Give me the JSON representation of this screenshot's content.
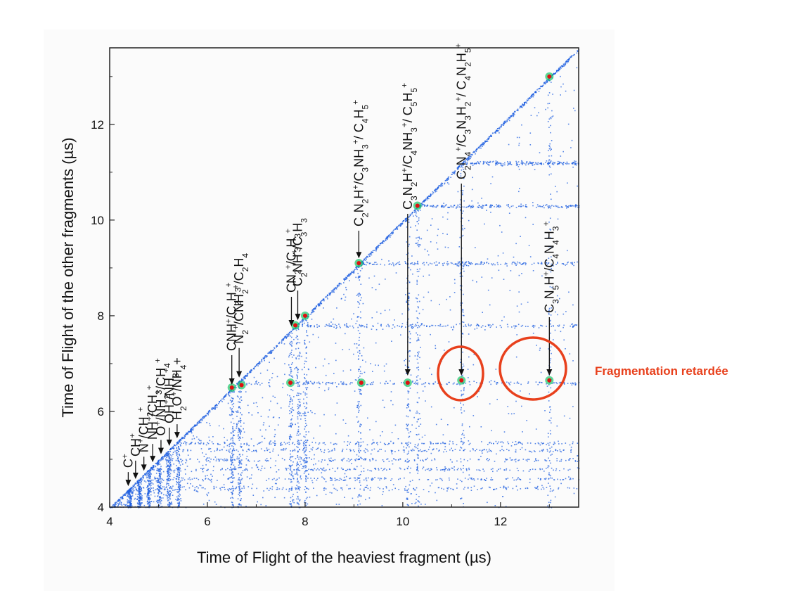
{
  "chart_data": {
    "type": "scatter",
    "title": "",
    "xlabel": "Time of Flight of the heaviest fragment (µs)",
    "ylabel": "Time of Flight of the other fragments (µs)",
    "xlim": [
      4,
      13.6
    ],
    "ylim": [
      4,
      13.6
    ],
    "x_ticks": [
      4,
      6,
      8,
      10,
      12
    ],
    "y_ticks": [
      4,
      6,
      8,
      10,
      12
    ],
    "colors": {
      "points": "#1f5fe0",
      "hot": "#e01010",
      "highlight": "#e8401c"
    },
    "hot_spots": [
      {
        "x": 6.5,
        "y": 6.5
      },
      {
        "x": 6.7,
        "y": 6.55
      },
      {
        "x": 7.7,
        "y": 6.6
      },
      {
        "x": 7.8,
        "y": 7.8
      },
      {
        "x": 9.15,
        "y": 6.6
      },
      {
        "x": 9.1,
        "y": 9.1
      },
      {
        "x": 10.1,
        "y": 6.6
      },
      {
        "x": 10.3,
        "y": 10.3
      },
      {
        "x": 11.2,
        "y": 6.65
      },
      {
        "x": 13.0,
        "y": 6.65
      },
      {
        "x": 13.0,
        "y": 13.0
      },
      {
        "x": 8.0,
        "y": 8.0
      }
    ],
    "annotations": [
      {
        "parts": [
          [
            "C",
            ""
          ],
          [
            "+",
            "sup"
          ]
        ],
        "x": 4.38
      },
      {
        "parts": [
          [
            "CH",
            ""
          ],
          [
            "+",
            "sup"
          ]
        ],
        "x": 4.53
      },
      {
        "parts": [
          [
            "N",
            ""
          ],
          [
            "+",
            "sup"
          ],
          [
            "/CH",
            ""
          ],
          [
            "2",
            "sub"
          ],
          [
            "+",
            "sup"
          ]
        ],
        "x": 4.7
      },
      {
        "parts": [
          [
            "NH",
            ""
          ],
          [
            "+",
            "sup"
          ],
          [
            "/CH",
            ""
          ],
          [
            "3",
            "sub"
          ],
          [
            "+",
            "sup"
          ]
        ],
        "x": 4.88
      },
      {
        "parts": [
          [
            "O",
            ""
          ],
          [
            "+",
            "sup"
          ],
          [
            "/NH",
            ""
          ],
          [
            "2",
            "sub"
          ],
          [
            "+",
            "sup"
          ],
          [
            "/CH",
            ""
          ],
          [
            "4",
            "sub"
          ],
          [
            "+",
            "sup"
          ]
        ],
        "x": 5.05
      },
      {
        "parts": [
          [
            "OH",
            ""
          ],
          [
            "+",
            "sup"
          ],
          [
            "/NH",
            ""
          ],
          [
            "3",
            "sub"
          ],
          [
            "+",
            "sup"
          ]
        ],
        "x": 5.22
      },
      {
        "parts": [
          [
            "H",
            ""
          ],
          [
            "2",
            "sub"
          ],
          [
            "O",
            ""
          ],
          [
            "+",
            "sup"
          ],
          [
            "/NH",
            ""
          ],
          [
            "4",
            "sub"
          ],
          [
            "+",
            ""
          ]
        ],
        "x": 5.38
      },
      {
        "parts": [
          [
            "CNH",
            ""
          ],
          [
            "+",
            "sup"
          ],
          [
            "/C",
            ""
          ],
          [
            "2",
            "sub"
          ],
          [
            "H",
            ""
          ],
          [
            "3",
            "sub"
          ],
          [
            "+",
            "sup"
          ]
        ],
        "x": 6.5
      },
      {
        "parts": [
          [
            "N",
            ""
          ],
          [
            "2",
            "sub"
          ],
          [
            "+",
            "sup"
          ],
          [
            "/CNH",
            ""
          ],
          [
            "2",
            "sub"
          ],
          [
            "+",
            "sup"
          ],
          [
            "/C",
            ""
          ],
          [
            "2",
            "sub"
          ],
          [
            "H",
            ""
          ],
          [
            "4",
            "sub"
          ]
        ],
        "x": 6.65
      },
      {
        "parts": [
          [
            "CN",
            ""
          ],
          [
            "2",
            "sub"
          ],
          [
            "+",
            "sup"
          ],
          [
            "/C",
            ""
          ],
          [
            "3",
            "sub"
          ],
          [
            "H",
            ""
          ],
          [
            "3",
            "sub"
          ],
          [
            "+",
            "sup"
          ]
        ],
        "x": 7.72
      },
      {
        "parts": [
          [
            "C",
            ""
          ],
          [
            "2",
            "sub"
          ],
          [
            "NH",
            ""
          ],
          [
            "+",
            "sup"
          ],
          [
            "/C",
            ""
          ],
          [
            "3",
            "sub"
          ],
          [
            "H",
            ""
          ],
          [
            "3",
            "sub"
          ]
        ],
        "x": 7.85
      },
      {
        "parts": [
          [
            "C",
            ""
          ],
          [
            "2",
            "sub"
          ],
          [
            "N",
            ""
          ],
          [
            "2",
            "sub"
          ],
          [
            "H",
            ""
          ],
          [
            "+",
            "sup"
          ],
          [
            "/C",
            ""
          ],
          [
            "3",
            "sub"
          ],
          [
            "NH",
            ""
          ],
          [
            "3",
            "sub"
          ],
          [
            "+",
            "sup"
          ],
          [
            "/ C",
            ""
          ],
          [
            "4",
            "sub"
          ],
          [
            "H",
            ""
          ],
          [
            "5",
            "sub"
          ],
          [
            "+",
            "sup"
          ]
        ],
        "x": 9.1
      },
      {
        "parts": [
          [
            "C",
            ""
          ],
          [
            "3",
            "sub"
          ],
          [
            "N",
            ""
          ],
          [
            "2",
            "sub"
          ],
          [
            "H",
            ""
          ],
          [
            "+",
            "sup"
          ],
          [
            "/C",
            ""
          ],
          [
            "4",
            "sub"
          ],
          [
            "NH",
            ""
          ],
          [
            "3",
            "sub"
          ],
          [
            "+",
            "sup"
          ],
          [
            "/ C",
            ""
          ],
          [
            "5",
            "sub"
          ],
          [
            "H",
            ""
          ],
          [
            "5",
            "sub"
          ],
          [
            "+",
            "sup"
          ]
        ],
        "x": 10.1
      },
      {
        "parts": [
          [
            "C",
            ""
          ],
          [
            "2",
            "sub"
          ],
          [
            "N",
            ""
          ],
          [
            "4",
            "sub"
          ],
          [
            "+",
            "sup"
          ],
          [
            "/C",
            ""
          ],
          [
            "3",
            "sub"
          ],
          [
            "N",
            ""
          ],
          [
            "3",
            "sub"
          ],
          [
            "H",
            ""
          ],
          [
            "2",
            "sub"
          ],
          [
            "+",
            "sup"
          ],
          [
            "/ C",
            ""
          ],
          [
            "4",
            "sub"
          ],
          [
            "N",
            ""
          ],
          [
            "2",
            "sub"
          ],
          [
            "H",
            ""
          ],
          [
            "5",
            "sub"
          ],
          [
            "+",
            "sup"
          ]
        ],
        "x": 11.2
      },
      {
        "parts": [
          [
            "C",
            ""
          ],
          [
            "3",
            "sub"
          ],
          [
            "N",
            ""
          ],
          [
            "5",
            "sub"
          ],
          [
            "H",
            ""
          ],
          [
            "+",
            "sup"
          ],
          [
            "/C",
            ""
          ],
          [
            "4",
            "sub"
          ],
          [
            "N",
            ""
          ],
          [
            "4",
            "sub"
          ],
          [
            "H",
            ""
          ],
          [
            "3",
            "sub"
          ],
          [
            "+",
            "sup"
          ]
        ],
        "x": 13.0
      }
    ],
    "highlight_note": "Fragmentation retardée"
  }
}
